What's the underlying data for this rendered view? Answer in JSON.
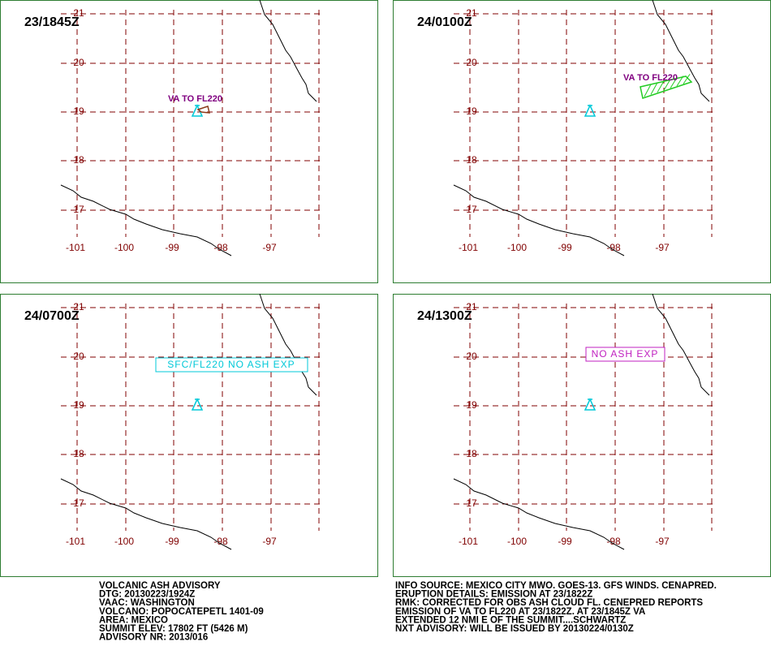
{
  "grid": {
    "lats": [
      "21",
      "20",
      "19",
      "18",
      "17"
    ],
    "lons": [
      "-101",
      "-100",
      "-99",
      "-98",
      "-97"
    ]
  },
  "panels": [
    {
      "time": "23/1845Z",
      "label": "VA TO FL220"
    },
    {
      "time": "24/0100Z",
      "label": "VA TO FL220"
    },
    {
      "time": "24/0700Z",
      "label": "SFC/FL220 NO ASH EXP"
    },
    {
      "time": "24/1300Z",
      "label": "NO ASH EXP"
    }
  ],
  "info_left": [
    "VOLCANIC ASH ADVISORY",
    "DTG: 20130223/1924Z",
    "VAAC: WASHINGTON",
    "VOLCANO: POPOCATEPETL 1401-09",
    "AREA: MEXICO",
    "SUMMIT ELEV: 17802 FT (5426 M)",
    "ADVISORY NR: 2013/016"
  ],
  "info_right": [
    "INFO SOURCE: MEXICO CITY MWO. GOES-13. GFS WINDS. CENAPRED.",
    "ERUPTION DETAILS: EMISSION AT 23/1822Z",
    "RMK: CORRECTED FOR OBS ASH CLOUD FL. CENEPRED REPORTS",
    "EMISSION OF VA TO FL220 AT 23/1822Z. AT 23/1845Z VA",
    "EXTENDED 12 NMI E OF THE SUMMIT....SCHWARTZ",
    "NXT ADVISORY: WILL BE ISSUED BY 20130224/0130Z"
  ]
}
